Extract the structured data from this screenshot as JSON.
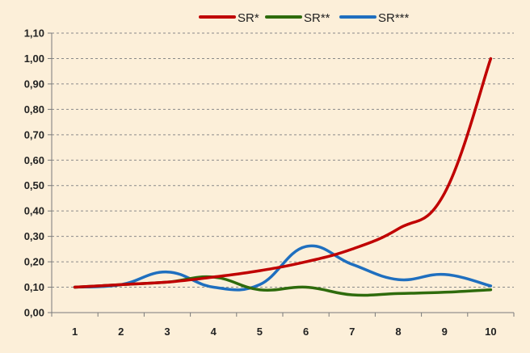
{
  "chart_data": {
    "type": "line",
    "title": "",
    "xlabel": "",
    "ylabel": "",
    "x": [
      1,
      2,
      3,
      4,
      5,
      6,
      7,
      8,
      9,
      10
    ],
    "x_tick_labels": [
      "1",
      "2",
      "3",
      "4",
      "5",
      "6",
      "7",
      "8",
      "9",
      "10"
    ],
    "ylim": [
      0,
      1.1
    ],
    "y_tick_labels": [
      "0,00",
      "0,10",
      "0,20",
      "0,30",
      "0,40",
      "0,50",
      "0,60",
      "0,70",
      "0,80",
      "0,90",
      "1,00",
      "1,10"
    ],
    "grid": "horizontal dashed",
    "legend_position": "top",
    "series": [
      {
        "name": "SR*",
        "color": "#c00000",
        "values": [
          0.1,
          0.11,
          0.12,
          0.14,
          0.165,
          0.2,
          0.25,
          0.33,
          0.47,
          1.0
        ]
      },
      {
        "name": "SR**",
        "color": "#2e6b0c",
        "values": [
          0.1,
          0.11,
          0.12,
          0.14,
          0.09,
          0.1,
          0.07,
          0.075,
          0.08,
          0.09
        ]
      },
      {
        "name": "SR***",
        "color": "#1f6fbf",
        "values": [
          0.1,
          0.11,
          0.16,
          0.1,
          0.11,
          0.26,
          0.19,
          0.13,
          0.15,
          0.105
        ]
      }
    ]
  }
}
